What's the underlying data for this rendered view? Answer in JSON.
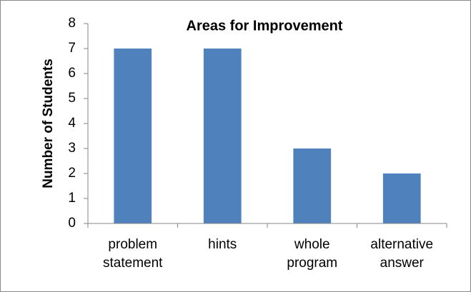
{
  "chart_data": {
    "type": "bar",
    "title": "Areas for Improvement",
    "y_label": "Number of Students",
    "categories": [
      "problem statement",
      "hints",
      "whole program",
      "alternative answer"
    ],
    "values": [
      7,
      7,
      3,
      2
    ],
    "color": "#4f81bd",
    "ylim": [
      0,
      8
    ],
    "yticks": [
      0,
      1,
      2,
      3,
      4,
      5,
      6,
      7,
      8
    ],
    "grid": false
  }
}
